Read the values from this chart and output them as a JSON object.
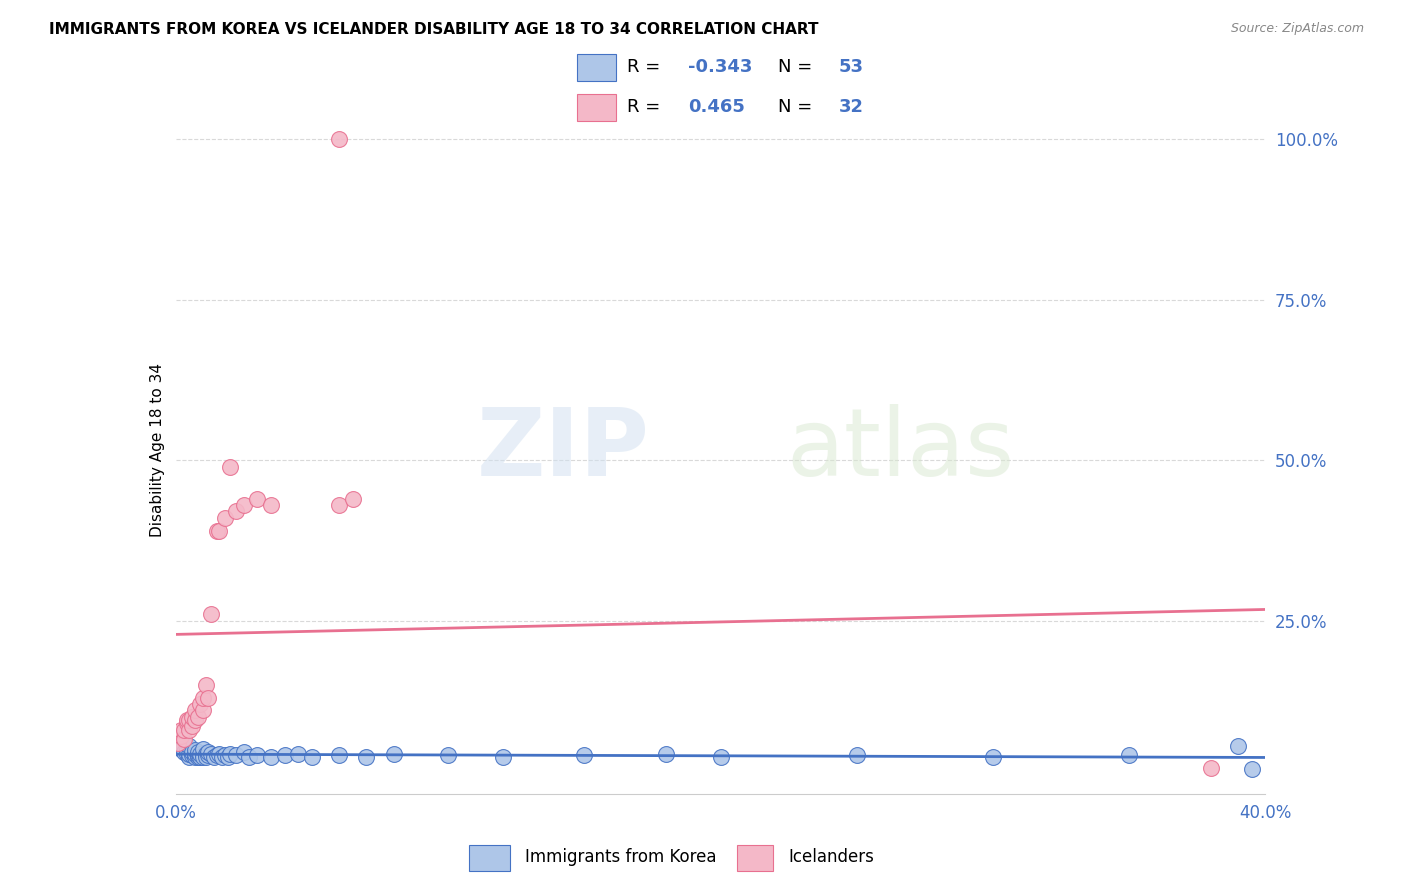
{
  "title": "IMMIGRANTS FROM KOREA VS ICELANDER DISABILITY AGE 18 TO 34 CORRELATION CHART",
  "source": "Source: ZipAtlas.com",
  "ylabel": "Disability Age 18 to 34",
  "ylabel_right_labels": [
    "100.0%",
    "75.0%",
    "50.0%",
    "25.0%"
  ],
  "ylabel_right_values": [
    1.0,
    0.75,
    0.5,
    0.25
  ],
  "xmin": 0.0,
  "xmax": 0.4,
  "ymin": -0.02,
  "ymax": 1.05,
  "watermark_zip": "ZIP",
  "watermark_atlas": "atlas",
  "legend_korea": {
    "label": "Immigrants from Korea",
    "face_color": "#aec6e8",
    "edge_color": "#4472c4",
    "R": "-0.343",
    "N": "53"
  },
  "legend_iceland": {
    "label": "Icelanders",
    "face_color": "#f4b8c8",
    "edge_color": "#e87090",
    "R": "0.465",
    "N": "32"
  },
  "korea_line_color": "#4472c4",
  "iceland_line_color": "#e87090",
  "grid_color": "#d9d9d9",
  "background_color": "#ffffff",
  "title_fontsize": 11,
  "axis_label_color": "#4472c4",
  "korea_x": [
    0.002,
    0.003,
    0.004,
    0.004,
    0.005,
    0.005,
    0.005,
    0.006,
    0.006,
    0.007,
    0.007,
    0.007,
    0.008,
    0.008,
    0.008,
    0.009,
    0.009,
    0.01,
    0.01,
    0.01,
    0.011,
    0.011,
    0.012,
    0.012,
    0.013,
    0.014,
    0.015,
    0.016,
    0.017,
    0.018,
    0.019,
    0.02,
    0.022,
    0.025,
    0.027,
    0.03,
    0.035,
    0.04,
    0.045,
    0.05,
    0.06,
    0.07,
    0.08,
    0.1,
    0.12,
    0.15,
    0.18,
    0.2,
    0.25,
    0.3,
    0.35,
    0.39,
    0.395
  ],
  "korea_y": [
    0.05,
    0.045,
    0.042,
    0.048,
    0.038,
    0.042,
    0.055,
    0.04,
    0.045,
    0.038,
    0.042,
    0.048,
    0.038,
    0.04,
    0.045,
    0.038,
    0.042,
    0.04,
    0.038,
    0.05,
    0.042,
    0.038,
    0.04,
    0.045,
    0.042,
    0.038,
    0.04,
    0.042,
    0.038,
    0.04,
    0.038,
    0.042,
    0.04,
    0.045,
    0.038,
    0.04,
    0.038,
    0.04,
    0.042,
    0.038,
    0.04,
    0.038,
    0.042,
    0.04,
    0.038,
    0.04,
    0.042,
    0.038,
    0.04,
    0.038,
    0.04,
    0.055,
    0.018
  ],
  "iceland_x": [
    0.001,
    0.002,
    0.002,
    0.003,
    0.003,
    0.004,
    0.004,
    0.005,
    0.005,
    0.006,
    0.006,
    0.007,
    0.007,
    0.008,
    0.009,
    0.01,
    0.01,
    0.011,
    0.012,
    0.013,
    0.015,
    0.016,
    0.018,
    0.02,
    0.022,
    0.025,
    0.03,
    0.035,
    0.06,
    0.065,
    0.38,
    0.06
  ],
  "iceland_y": [
    0.06,
    0.07,
    0.08,
    0.065,
    0.08,
    0.09,
    0.095,
    0.08,
    0.095,
    0.085,
    0.1,
    0.095,
    0.11,
    0.1,
    0.12,
    0.11,
    0.13,
    0.15,
    0.13,
    0.26,
    0.39,
    0.39,
    0.41,
    0.49,
    0.42,
    0.43,
    0.44,
    0.43,
    0.43,
    0.44,
    0.02,
    1.0
  ]
}
